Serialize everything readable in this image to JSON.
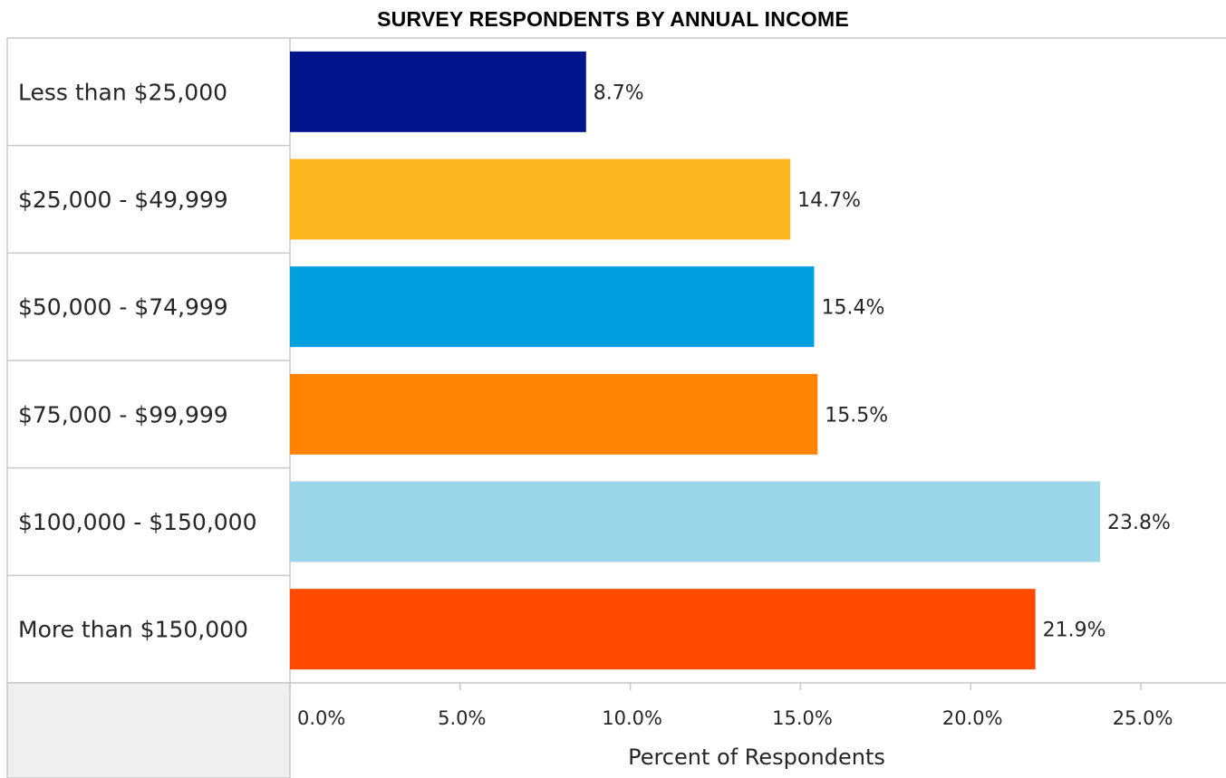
{
  "chart_data": {
    "type": "bar",
    "orientation": "horizontal",
    "title": "SURVEY RESPONDENTS BY ANNUAL INCOME",
    "xlabel": "Percent of Respondents",
    "ylabel": "",
    "categories": [
      "Less than $25,000",
      "$25,000 - $49,999",
      "$50,000 - $74,999",
      "$75,000 - $99,999",
      "$100,000 - $150,000",
      "More than $150,000"
    ],
    "values": [
      8.7,
      14.7,
      15.4,
      15.5,
      23.8,
      21.9
    ],
    "value_labels": [
      "8.7%",
      "14.7%",
      "15.4%",
      "15.5%",
      "23.8%",
      "21.9%"
    ],
    "bar_colors": [
      "#00148C",
      "#FDB71E",
      "#009FDF",
      "#FF8200",
      "#9AD5EA",
      "#FF4A00"
    ],
    "xlim": [
      0,
      27.5
    ],
    "x_ticks": [
      0,
      5,
      10,
      15,
      20,
      25
    ],
    "x_tick_labels": [
      "0.0%",
      "5.0%",
      "10.0%",
      "15.0%",
      "20.0%",
      "25.0%"
    ],
    "grid": false,
    "legend": "none"
  }
}
